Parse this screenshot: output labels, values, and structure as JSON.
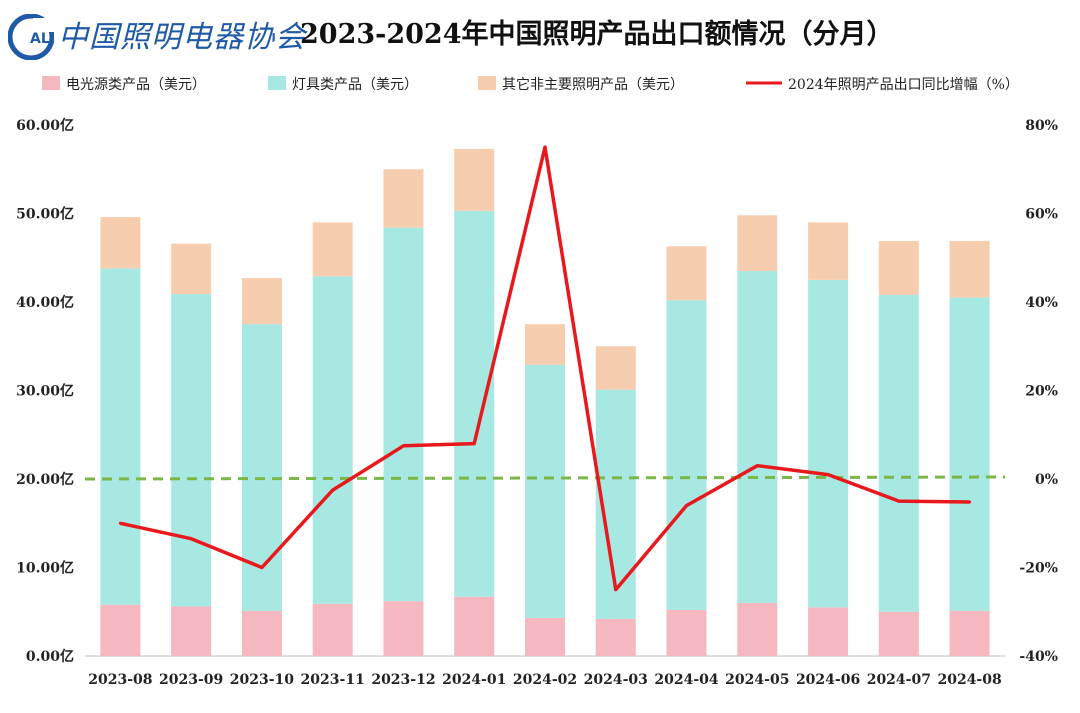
{
  "header": {
    "logo_abbr": "CALI",
    "logo_text": "中国照明电器协会",
    "title": "2023-2024年中国照明产品出口额情况（分月）"
  },
  "colors": {
    "light_source": "#f5b8c0",
    "fixtures": "#a8e8e2",
    "other": "#f7cdb0",
    "growth_line": "#e8191d",
    "zero_line": "#7ab648",
    "logo": "#1f5aa6"
  },
  "chart_data": {
    "type": "bar",
    "stacked": true,
    "title": "2023-2024年中国照明产品出口额情况（分月）",
    "categories": [
      "2023-08",
      "2023-09",
      "2023-10",
      "2023-11",
      "2023-12",
      "2024-01",
      "2024-02",
      "2024-03",
      "2024-04",
      "2024-05",
      "2024-06",
      "2024-07",
      "2024-08"
    ],
    "series": [
      {
        "name": "电光源类产品（美元）",
        "key": "light_source",
        "axis": "left",
        "values": [
          5.8,
          5.6,
          5.1,
          5.9,
          6.2,
          6.7,
          4.3,
          4.2,
          5.2,
          6.0,
          5.5,
          5.0,
          5.1
        ]
      },
      {
        "name": "灯具类产品（美元）",
        "key": "fixtures",
        "axis": "left",
        "values": [
          38.0,
          35.3,
          32.4,
          37.0,
          42.2,
          43.6,
          28.6,
          25.9,
          35.0,
          37.5,
          37.0,
          35.8,
          35.4
        ]
      },
      {
        "name": "其它非主要照明产品（美元）",
        "key": "other",
        "axis": "left",
        "values": [
          5.8,
          5.7,
          5.2,
          6.1,
          6.6,
          7.0,
          4.6,
          4.9,
          6.1,
          6.3,
          6.5,
          6.1,
          6.4
        ]
      },
      {
        "name": "2024年照明产品出口同比增幅（%）",
        "key": "growth_line",
        "type": "line",
        "axis": "right",
        "values": [
          -10,
          -13.5,
          -20,
          -2.5,
          7.5,
          8,
          75,
          -25,
          -6,
          3,
          1,
          -5,
          -5.2
        ]
      }
    ],
    "y_left": {
      "range": [
        0,
        60
      ],
      "ticks": [
        "0.00亿",
        "10.00亿",
        "20.00亿",
        "30.00亿",
        "40.00亿",
        "50.00亿",
        "60.00亿"
      ]
    },
    "y_right": {
      "range": [
        -40,
        80
      ],
      "ticks": [
        "-40%",
        "-20%",
        "0%",
        "20%",
        "40%",
        "60%",
        "80%"
      ]
    },
    "legend_position": "top"
  }
}
